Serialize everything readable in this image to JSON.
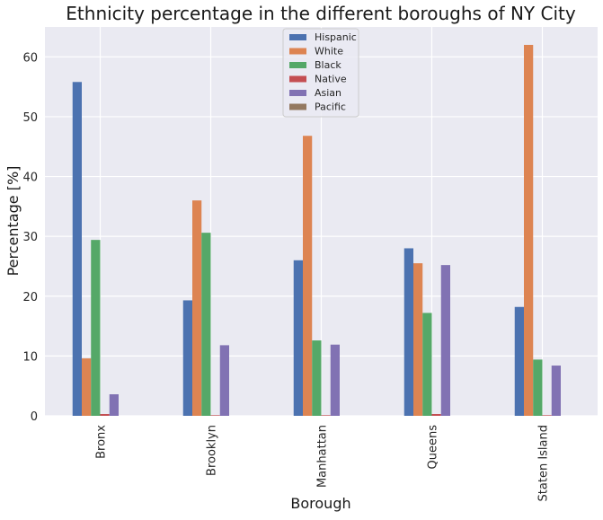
{
  "chart_data": {
    "type": "bar",
    "title": "Ethnicity percentage in the different boroughs of NY City",
    "xlabel": "Borough",
    "ylabel": "Percentage [%]",
    "ylim": [
      0,
      65
    ],
    "yticks": [
      0,
      10,
      20,
      30,
      40,
      50,
      60
    ],
    "grid": true,
    "legend_position": "top-center",
    "categories": [
      "Bronx",
      "Brooklyn",
      "Manhattan",
      "Queens",
      "Staten Island"
    ],
    "series": [
      {
        "name": "Hispanic",
        "color": "#4c72b0",
        "values": [
          55.8,
          19.3,
          26.0,
          28.0,
          18.2
        ]
      },
      {
        "name": "White",
        "color": "#dd8452",
        "values": [
          9.6,
          36.0,
          46.8,
          25.5,
          62.0
        ]
      },
      {
        "name": "Black",
        "color": "#55a868",
        "values": [
          29.4,
          30.6,
          12.6,
          17.2,
          9.4
        ]
      },
      {
        "name": "Native",
        "color": "#c44e52",
        "values": [
          0.3,
          0.1,
          0.1,
          0.3,
          0.1
        ]
      },
      {
        "name": "Asian",
        "color": "#8172b3",
        "values": [
          3.6,
          11.8,
          11.9,
          25.2,
          8.4
        ]
      },
      {
        "name": "Pacific",
        "color": "#937860",
        "values": [
          0.0,
          0.0,
          0.0,
          0.0,
          0.0
        ]
      }
    ]
  }
}
